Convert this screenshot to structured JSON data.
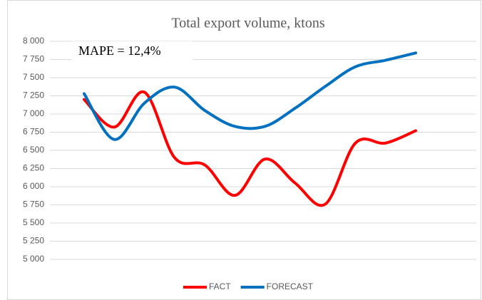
{
  "chart_data": {
    "type": "line",
    "title": "Total export volume, ktons",
    "annotation": "MAPE = 12,4%",
    "categories": [
      null,
      null,
      null,
      null,
      null,
      null,
      null,
      null,
      null,
      null,
      null,
      null
    ],
    "series": [
      {
        "name": "FACT",
        "color": "#ff0000",
        "values": [
          7200,
          6820,
          7300,
          6400,
          6300,
          5880,
          6380,
          6050,
          5760,
          6600,
          6600,
          6770
        ]
      },
      {
        "name": "FORECAST",
        "color": "#0070c0",
        "values": [
          7280,
          6650,
          7150,
          7370,
          7050,
          6830,
          6830,
          7080,
          7380,
          7650,
          7740,
          7840
        ]
      }
    ],
    "ylim": [
      5000,
      8000
    ],
    "yticks": [
      {
        "value": 5000,
        "label": "5 000"
      },
      {
        "value": 5250,
        "label": "5 250"
      },
      {
        "value": 5500,
        "label": "5 500"
      },
      {
        "value": 5750,
        "label": "5 750"
      },
      {
        "value": 6000,
        "label": "6 000"
      },
      {
        "value": 6250,
        "label": "6 250"
      },
      {
        "value": 6500,
        "label": "6 500"
      },
      {
        "value": 6750,
        "label": "6 750"
      },
      {
        "value": 7000,
        "label": "7 000"
      },
      {
        "value": 7250,
        "label": "7 250"
      },
      {
        "value": 7500,
        "label": "7 500"
      },
      {
        "value": 7750,
        "label": "7 750"
      },
      {
        "value": 8000,
        "label": "8 000"
      }
    ],
    "grid": true,
    "legend": "bottom"
  }
}
